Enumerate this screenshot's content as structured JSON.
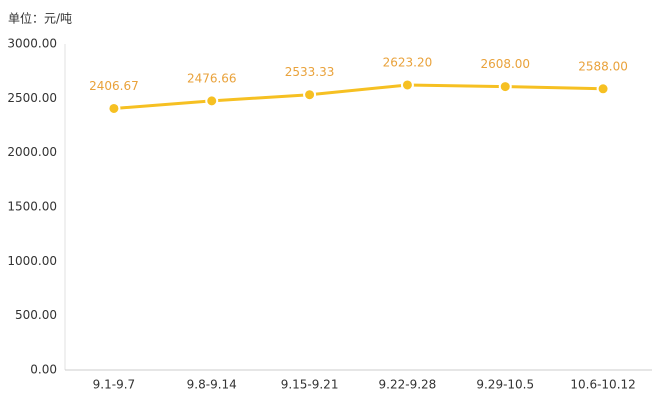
{
  "chart_data": {
    "type": "line",
    "unit_label": "单位：元/吨",
    "categories": [
      "9.1-9.7",
      "9.8-9.14",
      "9.15-9.21",
      "9.22-9.28",
      "9.29-10.5",
      "10.6-10.12"
    ],
    "values": [
      2406.67,
      2476.66,
      2533.33,
      2623.2,
      2608,
      2588
    ],
    "value_labels": [
      "2406.67",
      "2476.66",
      "2533.33",
      "2623.20",
      "2608.00",
      "2588.00"
    ],
    "color": "#f6c022",
    "label_color": "#e9a23b",
    "ylim": [
      0,
      3000
    ],
    "yticks": [
      {
        "value": 0,
        "label": "0.00"
      },
      {
        "value": 500,
        "label": "500.00"
      },
      {
        "value": 1000,
        "label": "1000.00"
      },
      {
        "value": 1500,
        "label": "1500.00"
      },
      {
        "value": 2000,
        "label": "2000.00"
      },
      {
        "value": 2500,
        "label": "2500.00"
      },
      {
        "value": 3000,
        "label": "3000.00"
      }
    ],
    "grid": false
  }
}
